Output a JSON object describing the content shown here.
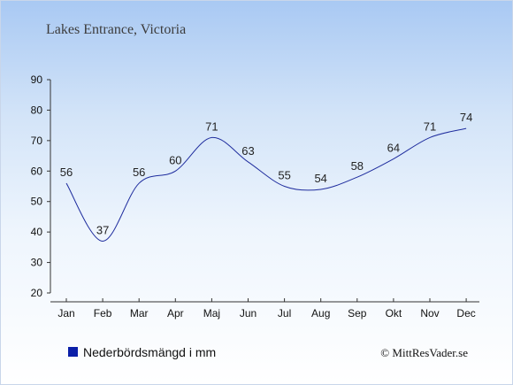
{
  "chart_data": {
    "type": "line",
    "title": "Lakes Entrance, Victoria",
    "categories": [
      "Jan",
      "Feb",
      "Mar",
      "Apr",
      "Maj",
      "Jun",
      "Jul",
      "Aug",
      "Sep",
      "Okt",
      "Nov",
      "Dec"
    ],
    "values": [
      56,
      37,
      56,
      60,
      71,
      63,
      55,
      54,
      58,
      64,
      71,
      74
    ],
    "ylim": [
      20,
      90
    ],
    "yticks": [
      20,
      30,
      40,
      50,
      60,
      70,
      80,
      90
    ],
    "grid": false,
    "legend": {
      "label": "Nederbördsmängd i mm",
      "placement": "bottom-left"
    },
    "credit": "© MittResVader.se",
    "colors": {
      "line": "#1f2d9e",
      "marker": "#0b1fa8"
    }
  }
}
